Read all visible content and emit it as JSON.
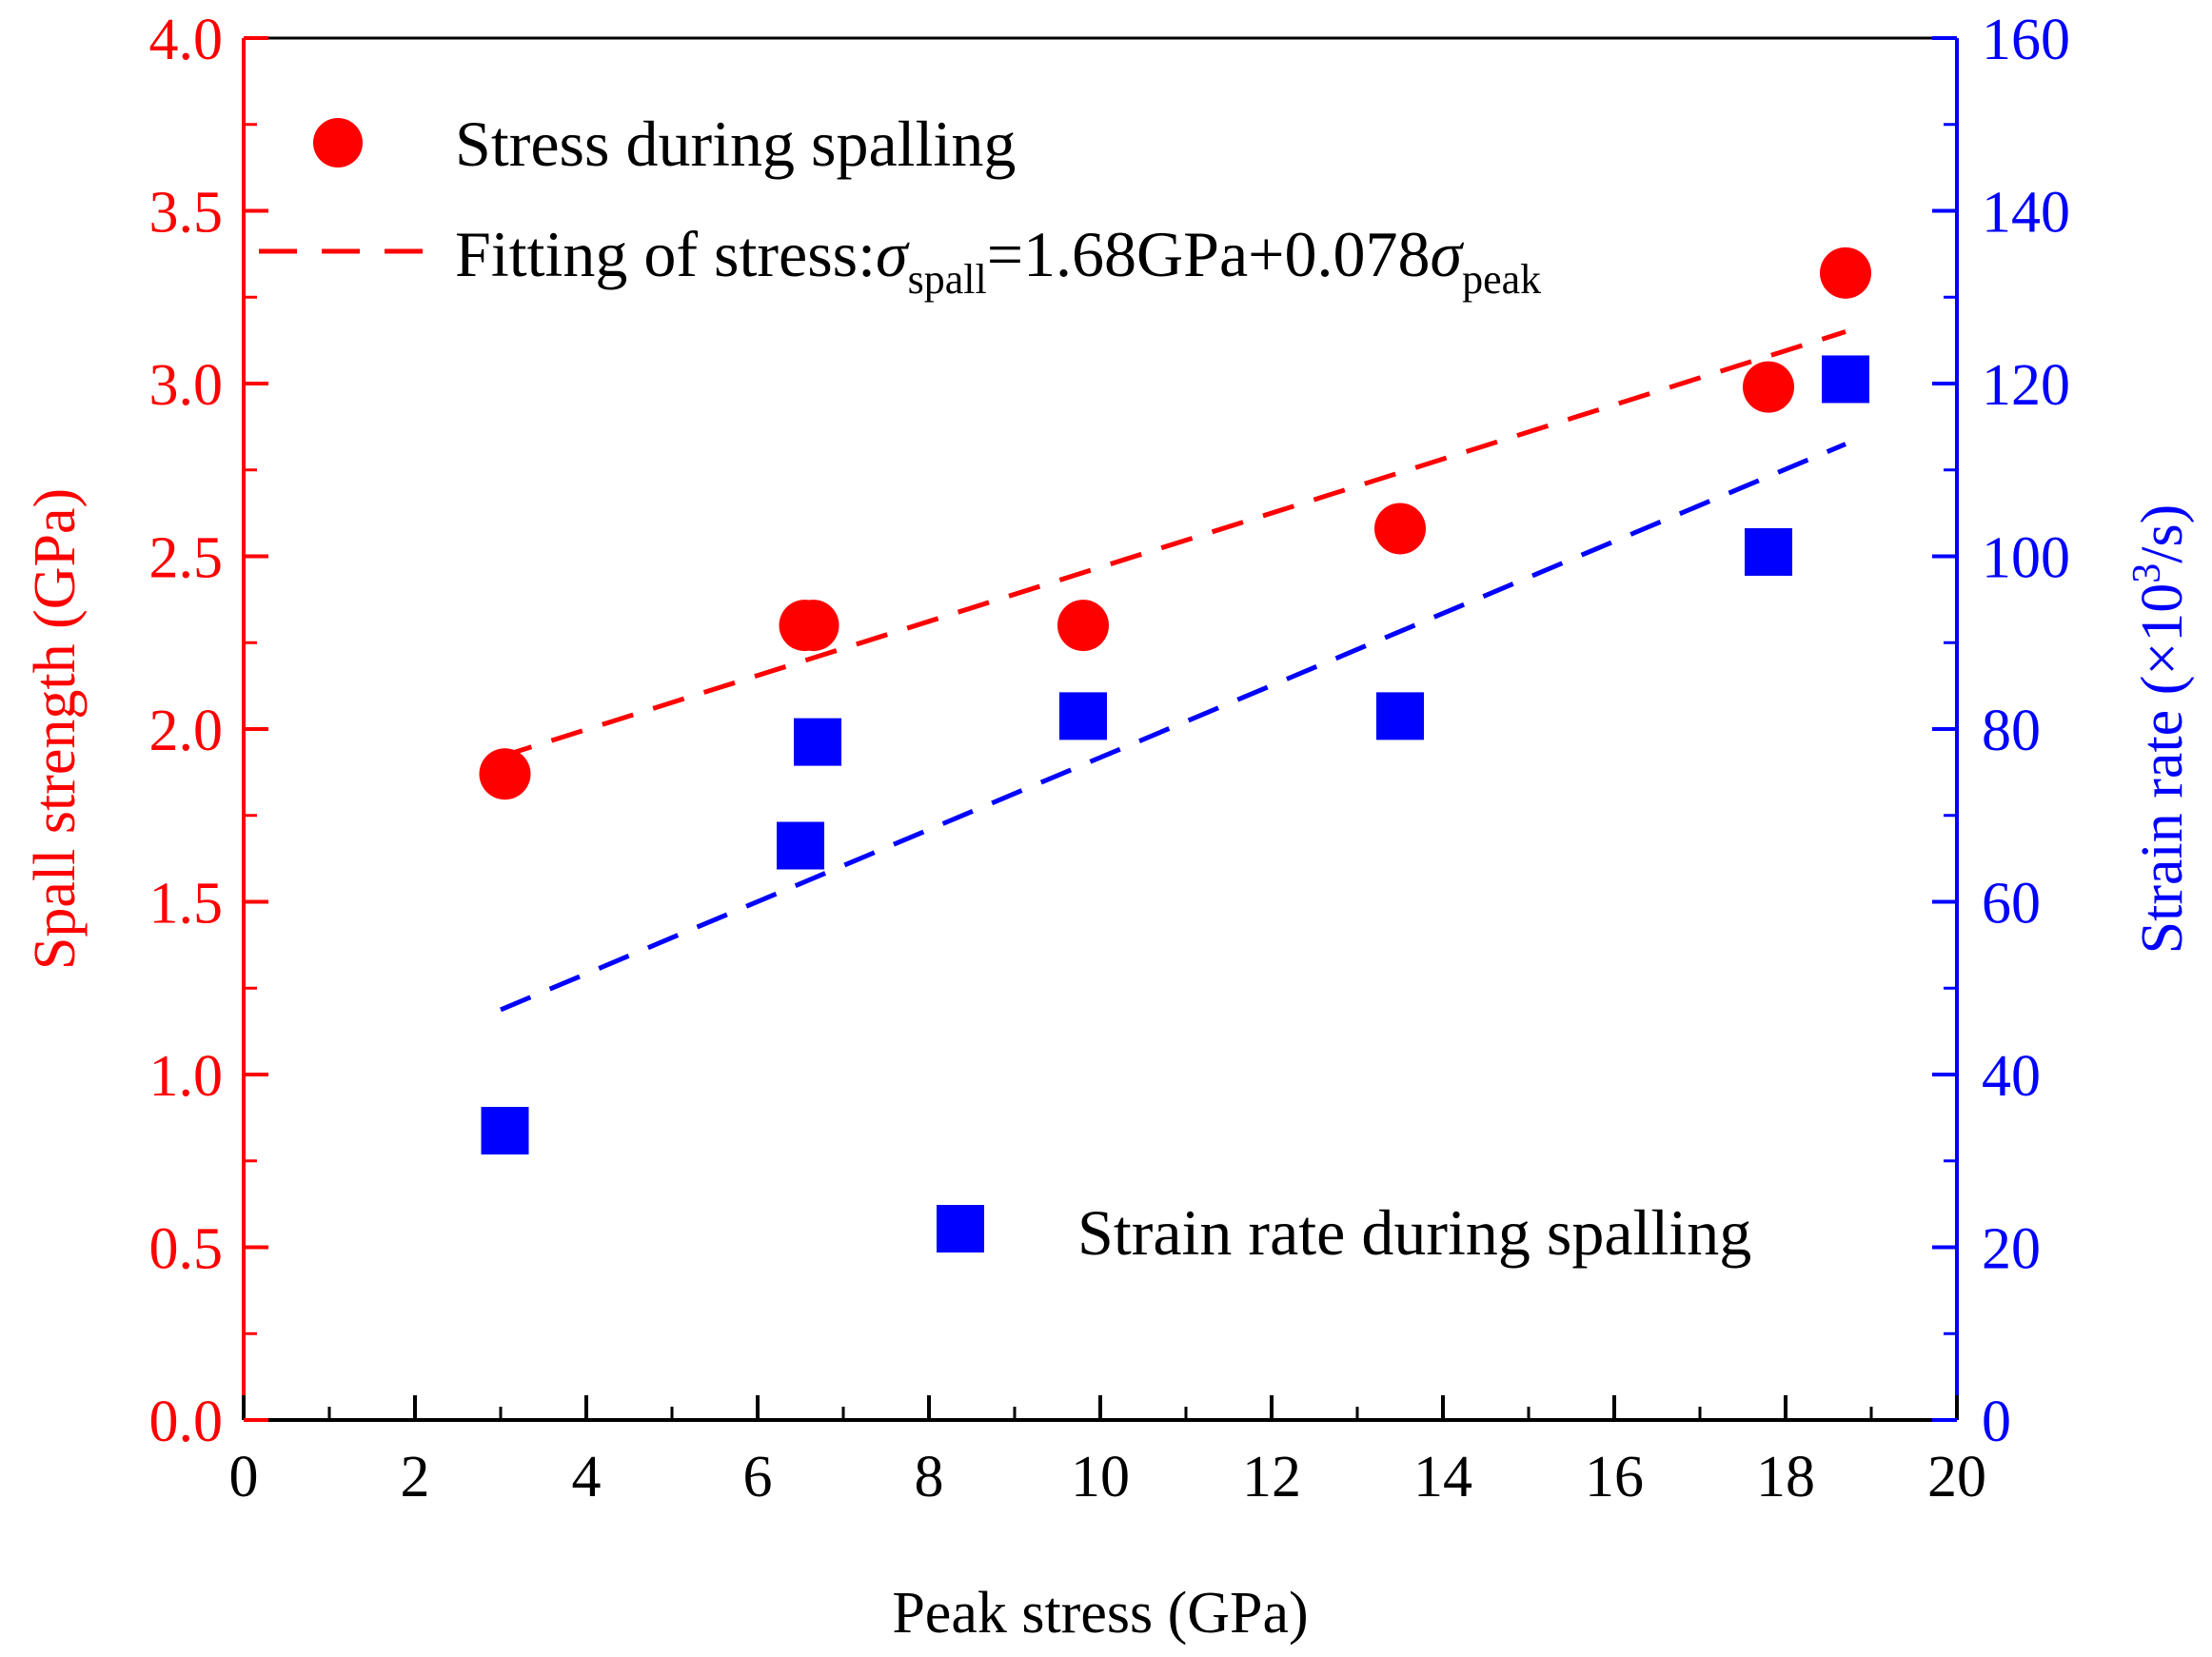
{
  "chart_data": {
    "type": "scatter",
    "title": "",
    "xlabel": "Peak stress (GPa)",
    "x_range": [
      0,
      20
    ],
    "x_ticks": [
      "0",
      "2",
      "4",
      "6",
      "8",
      "10",
      "12",
      "14",
      "16",
      "18",
      "20"
    ],
    "y_left": {
      "label": "Spall strength (GPa)",
      "range": [
        0.0,
        4.0
      ],
      "ticks": [
        "0.0",
        "0.5",
        "1.0",
        "1.5",
        "2.0",
        "2.5",
        "3.0",
        "3.5",
        "4.0"
      ],
      "color": "#ff0000"
    },
    "y_right": {
      "label_main": "Strain rate (×10",
      "label_sup": "3",
      "label_tail": "/s)",
      "range": [
        0,
        160
      ],
      "ticks": [
        "0",
        "20",
        "40",
        "60",
        "80",
        "100",
        "120",
        "140",
        "160"
      ],
      "color": "#0000ff"
    },
    "grid": false,
    "series": [
      {
        "name": "Stress during spalling",
        "axis": "left",
        "marker": "circle",
        "color": "#ff0000",
        "points": [
          [
            3.05,
            1.87
          ],
          [
            6.55,
            2.3
          ],
          [
            6.65,
            2.3
          ],
          [
            9.8,
            2.3
          ],
          [
            13.5,
            2.58
          ],
          [
            17.8,
            2.99
          ],
          [
            18.7,
            3.32
          ]
        ]
      },
      {
        "name": "Strain rate during spalling",
        "axis": "right",
        "marker": "square",
        "color": "#0000ff",
        "points": [
          [
            3.05,
            33.5
          ],
          [
            6.5,
            66.5
          ],
          [
            6.7,
            78.5
          ],
          [
            9.8,
            81.5
          ],
          [
            13.5,
            81.5
          ],
          [
            17.8,
            100.5
          ],
          [
            18.7,
            120.5
          ]
        ]
      }
    ],
    "fits": [
      {
        "name": "fit-stress",
        "axis": "left",
        "color": "#ff0000",
        "x": [
          3.0,
          18.7
        ],
        "y": [
          1.92,
          3.15
        ]
      },
      {
        "name": "fit-strain-rate",
        "axis": "right",
        "color": "#0000ff",
        "x": [
          3.0,
          18.7
        ],
        "y": [
          47.5,
          113
        ]
      }
    ],
    "legend": {
      "stress": "Stress during spalling",
      "fit_prefix": "Fitting of stress:",
      "fit_sigma": "σ",
      "fit_sub1": "spall",
      "fit_eq": "=1.68GPa+0.078",
      "fit_sub2": "peak",
      "strain": "Strain rate during spalling"
    }
  }
}
